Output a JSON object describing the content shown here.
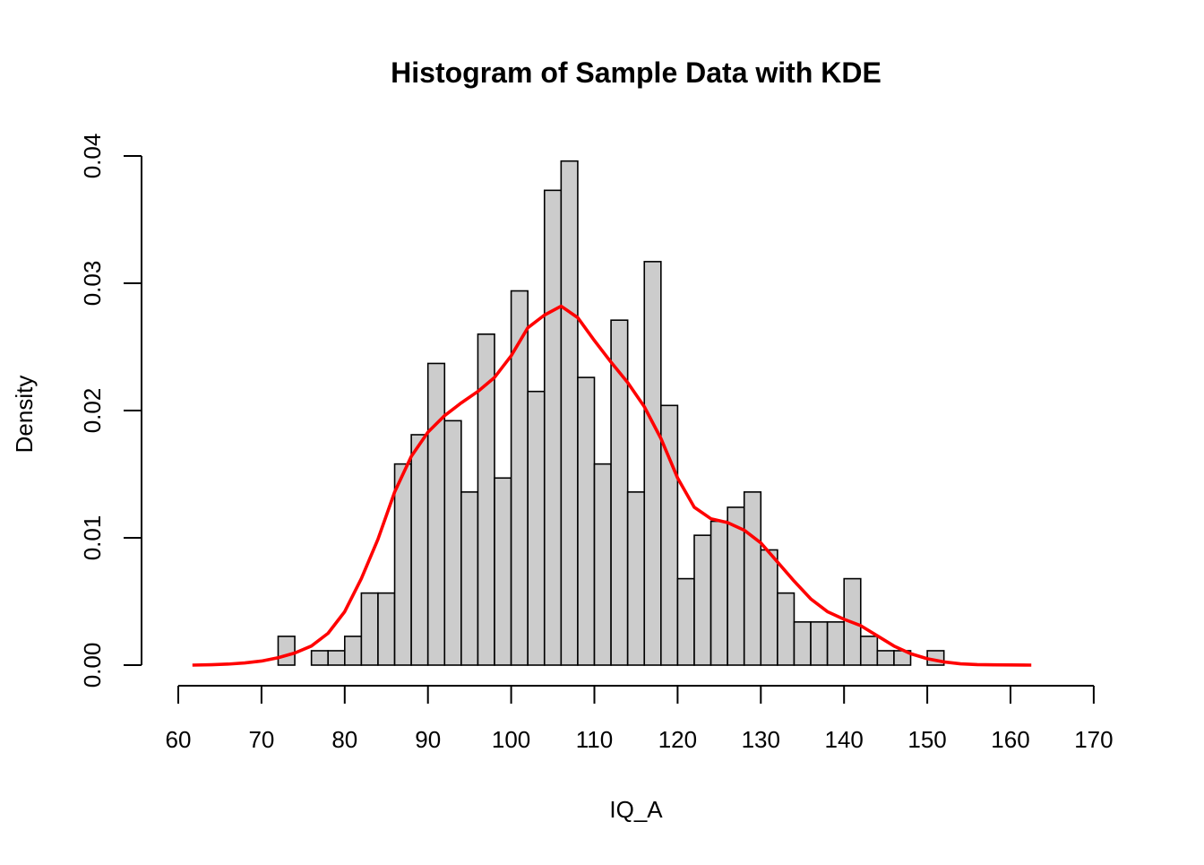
{
  "chart_data": {
    "type": "bar",
    "subtype": "histogram_with_kde",
    "title": "Histogram of Sample Data with KDE",
    "xlabel": "IQ_A",
    "ylabel": "Density",
    "xlim": [
      60,
      170
    ],
    "ylim": [
      0,
      0.04
    ],
    "xticks": [
      "60",
      "70",
      "80",
      "90",
      "100",
      "110",
      "120",
      "130",
      "140",
      "150",
      "160",
      "170"
    ],
    "yticks": [
      "0.00",
      "0.01",
      "0.02",
      "0.03",
      "0.04"
    ],
    "grid": false,
    "bar_color": "#cccccc",
    "kde_color": "#ff0000",
    "bins": {
      "start": 72,
      "width": 2,
      "values": [
        0.00226,
        0,
        0.00113,
        0.00113,
        0.00226,
        0.00566,
        0.00566,
        0.0158,
        0.0181,
        0.0237,
        0.0192,
        0.0136,
        0.026,
        0.0147,
        0.0294,
        0.0215,
        0.0373,
        0.0396,
        0.0226,
        0.0158,
        0.0271,
        0.0136,
        0.0317,
        0.0204,
        0.00679,
        0.0102,
        0.0113,
        0.0124,
        0.0136,
        0.00905,
        0.00566,
        0.00339,
        0.00339,
        0.00339,
        0.00679,
        0.00226,
        0.00113,
        0.00113,
        0,
        0.00113
      ]
    },
    "kde": {
      "x": [
        61.7,
        64,
        66,
        68,
        70,
        72,
        74,
        76,
        78,
        80,
        82,
        84,
        86,
        88,
        90,
        92,
        94,
        96,
        98,
        100,
        102,
        104,
        106,
        108,
        110,
        112,
        114,
        116,
        118,
        120,
        122,
        124,
        126,
        128,
        130,
        132,
        134,
        136,
        138,
        140,
        142,
        144,
        146,
        148,
        150,
        152,
        154,
        156,
        158,
        160,
        162.5
      ],
      "y": [
        0.0,
        3e-05,
        8e-05,
        0.00017,
        0.00032,
        0.00058,
        0.00095,
        0.0015,
        0.0025,
        0.0042,
        0.0068,
        0.0099,
        0.0136,
        0.0164,
        0.0183,
        0.0196,
        0.0206,
        0.0215,
        0.0226,
        0.0243,
        0.0265,
        0.0275,
        0.0282,
        0.0273,
        0.0255,
        0.0238,
        0.0222,
        0.0203,
        0.0178,
        0.0147,
        0.0124,
        0.0115,
        0.0112,
        0.0106,
        0.0096,
        0.0081,
        0.0066,
        0.0052,
        0.0042,
        0.0036,
        0.0031,
        0.0023,
        0.0015,
        0.0009,
        0.0005,
        0.00025,
        0.0001,
        4e-05,
        2e-05,
        1e-05,
        0.0
      ]
    }
  }
}
